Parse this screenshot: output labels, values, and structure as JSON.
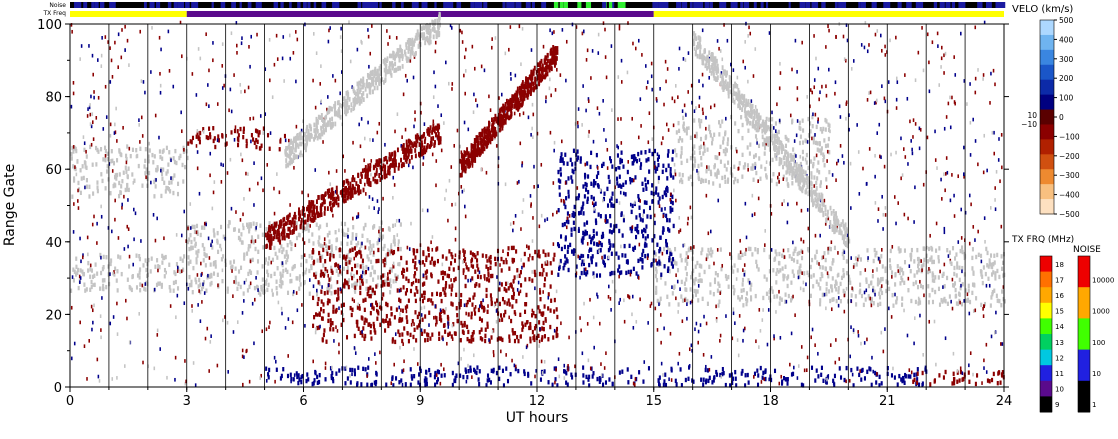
{
  "header": {
    "noise_label": "Noise",
    "txfreq_label": "TX Freq"
  },
  "chart_data": {
    "type": "heatmap",
    "xlabel": "UT hours",
    "ylabel": "Range Gate",
    "xlim": [
      0,
      24
    ],
    "ylim": [
      0,
      100
    ],
    "x_ticks": [
      0,
      3,
      6,
      9,
      12,
      15,
      18,
      21,
      24
    ],
    "x_ticklabels": [
      "0",
      "3",
      "6",
      "9",
      "12",
      "15",
      "18",
      "21",
      "24"
    ],
    "y_ticks": [
      0,
      20,
      40,
      60,
      80,
      100
    ],
    "y_ticklabels": [
      "0",
      "20",
      "40",
      "60",
      "80",
      "100"
    ],
    "hour_lines": [
      1,
      2,
      3,
      4,
      5,
      6,
      7,
      8,
      9,
      10,
      11,
      12,
      13,
      14,
      15,
      16,
      17,
      18,
      19,
      20,
      21,
      22,
      23
    ],
    "colors": {
      "ground_scatter": "#c4c4c4",
      "negative_velocity": "#8b0000",
      "positive_velocity": "#00008b",
      "txfreq_day": "#ffff00",
      "txfreq_night": "#5a0a8c",
      "noise_bar": "#1a1aa0"
    },
    "tx_freq_segments": [
      {
        "from": 0,
        "to": 3,
        "freq": 16
      },
      {
        "from": 3,
        "to": 15,
        "freq": 10
      },
      {
        "from": 15,
        "to": 24,
        "freq": 16
      }
    ],
    "bands": [
      {
        "kind": "ground",
        "x": [
          0,
          3
        ],
        "y": [
          52,
          66
        ],
        "note": "early ground scatter"
      },
      {
        "kind": "ground",
        "x": [
          0,
          3
        ],
        "y": [
          26,
          36
        ]
      },
      {
        "kind": "ground",
        "x": [
          3,
          8.5
        ],
        "y": [
          25,
          45
        ]
      },
      {
        "kind": "ground",
        "x": [
          15,
          24
        ],
        "y": [
          22,
          38
        ]
      },
      {
        "kind": "ground",
        "x": [
          15.5,
          19.5
        ],
        "y": [
          55,
          74
        ]
      },
      {
        "kind": "negative",
        "x": [
          6.2,
          12.5
        ],
        "y": [
          12,
          38
        ]
      },
      {
        "kind": "negative",
        "x": [
          3,
          5.5
        ],
        "y": [
          65,
          71
        ]
      },
      {
        "kind": "positive",
        "x": [
          5,
          22
        ],
        "y": [
          0,
          5
        ]
      },
      {
        "kind": "negative",
        "x": [
          21.5,
          24
        ],
        "y": [
          0,
          4
        ]
      },
      {
        "kind": "positive",
        "x": [
          12.5,
          15.5
        ],
        "y": [
          30,
          65
        ]
      }
    ],
    "velocity_scale": {
      "title": "VELO (km/s)",
      "ticks": [
        "500",
        "400",
        "300",
        "200",
        "100",
        "0",
        "−100",
        "−200",
        "−300",
        "−400",
        "−500"
      ],
      "ground_labels": [
        "10",
        "−10"
      ],
      "colors": [
        "#add8ff",
        "#6fb4f0",
        "#3a86e0",
        "#1a56c8",
        "#0c2aa8",
        "#000080",
        "#5a0000",
        "#8b0000",
        "#b02000",
        "#d05010",
        "#ee8a30",
        "#f8c080",
        "#fde0c0"
      ]
    },
    "txfreq_scale": {
      "title": "TX FRQ (MHz)",
      "ticks": [
        "18",
        "17",
        "16",
        "15",
        "14",
        "13",
        "12",
        "11",
        "10",
        "9"
      ],
      "colors": [
        "#ee0000",
        "#ff7000",
        "#ffa800",
        "#ffff00",
        "#40ff00",
        "#00d060",
        "#00c8e0",
        "#2020e0",
        "#5a0a8c",
        "#000000"
      ]
    },
    "noise_scale": {
      "title": "NOISE",
      "ticks": [
        "10000",
        "1000",
        "100",
        "10",
        "1"
      ],
      "colors": [
        "#ee0000",
        "#ffa800",
        "#40ff00",
        "#2020e0",
        "#000000"
      ]
    }
  }
}
